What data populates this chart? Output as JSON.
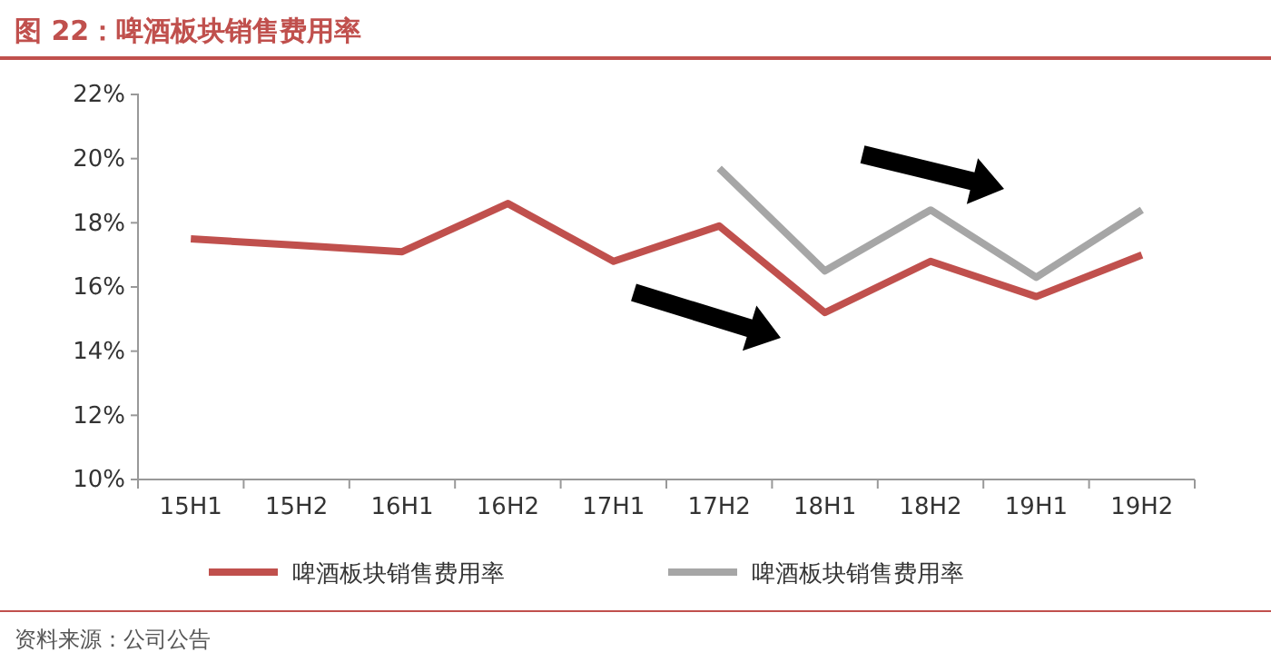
{
  "chart_data": {
    "type": "line",
    "title": "图 22：啤酒板块销售费用率",
    "categories": [
      "15H1",
      "15H2",
      "16H1",
      "16H2",
      "17H1",
      "17H2",
      "18H1",
      "18H2",
      "19H1",
      "19H2"
    ],
    "series": [
      {
        "name": "啤酒板块销售费用率",
        "color": "#c0504d",
        "values": [
          17.5,
          17.3,
          17.1,
          18.6,
          16.8,
          17.9,
          15.2,
          16.8,
          15.7,
          17.0
        ]
      },
      {
        "name": "啤酒板块销售费用率",
        "color": "#a6a6a6",
        "values": [
          null,
          null,
          null,
          null,
          null,
          19.7,
          16.5,
          18.4,
          16.3,
          18.4
        ]
      }
    ],
    "ylim": [
      10,
      22
    ],
    "yticks": [
      {
        "value": 10,
        "label": "10%"
      },
      {
        "value": 12,
        "label": "12%"
      },
      {
        "value": 14,
        "label": "14%"
      },
      {
        "value": 16,
        "label": "16%"
      },
      {
        "value": 18,
        "label": "18%"
      },
      {
        "value": 20,
        "label": "20%"
      },
      {
        "value": 22,
        "label": "22%"
      }
    ],
    "grid": false,
    "legend": "bottom",
    "marker": "none",
    "line_style": "solid",
    "annotations": [
      "资料来源：公司公告"
    ]
  }
}
